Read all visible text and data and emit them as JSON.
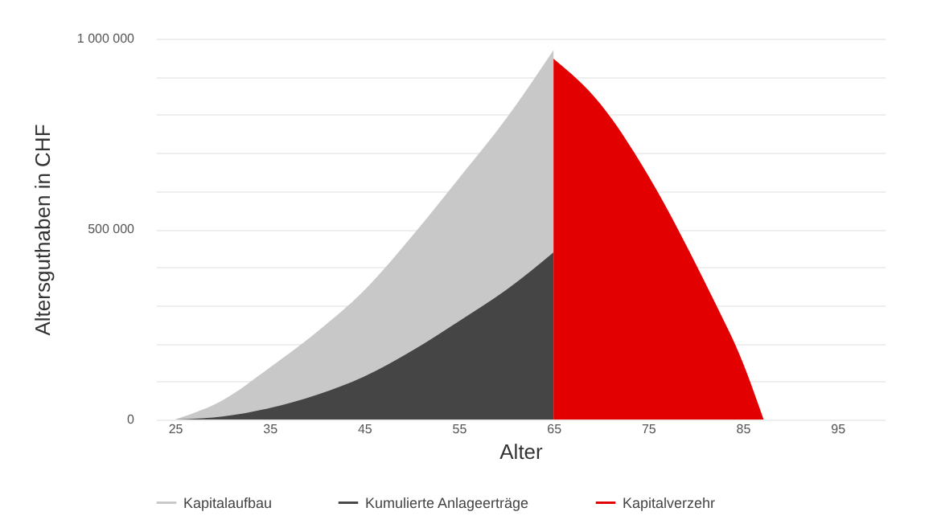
{
  "chart_data": {
    "type": "area",
    "xlabel": "Alter",
    "ylabel": "Altersguthaben in CHF",
    "xlim": [
      23,
      100
    ],
    "xticks": [
      25,
      35,
      45,
      55,
      65,
      75,
      85,
      95
    ],
    "ylim": [
      0,
      1000000
    ],
    "yticks": [
      {
        "value": 0,
        "label": "0"
      },
      {
        "value": 100000,
        "label": null
      },
      {
        "value": 200000,
        "label": null
      },
      {
        "value": 300000,
        "label": null
      },
      {
        "value": 400000,
        "label": null
      },
      {
        "value": 500000,
        "label": "500 000"
      },
      {
        "value": 600000,
        "label": null
      },
      {
        "value": 700000,
        "label": null
      },
      {
        "value": 800000,
        "label": null
      },
      {
        "value": 900000,
        "label": null
      },
      {
        "value": 1000000,
        "label": "1 000 000"
      }
    ],
    "grid": "y",
    "legend": "bottom",
    "series": [
      {
        "name": "Kapitalaufbau",
        "color": "#c8c8c8",
        "x": [
          25,
          30,
          35,
          40,
          45,
          50,
          55,
          60,
          65
        ],
        "values": [
          0,
          50000,
          136000,
          230000,
          339000,
          480000,
          633000,
          790000,
          970000
        ]
      },
      {
        "name": "Kumulierte Anlageerträge",
        "color": "#454545",
        "x": [
          25,
          30,
          35,
          40,
          45,
          50,
          55,
          60,
          65
        ],
        "values": [
          0,
          8000,
          30000,
          65000,
          113000,
          180000,
          258000,
          340000,
          439000
        ]
      },
      {
        "name": "Kapitalverzehr",
        "color": "#e30000",
        "x": [
          65,
          70,
          75,
          80,
          82,
          85,
          87.2
        ],
        "values": [
          947000,
          827000,
          641000,
          410000,
          310000,
          150000,
          0
        ]
      }
    ]
  }
}
